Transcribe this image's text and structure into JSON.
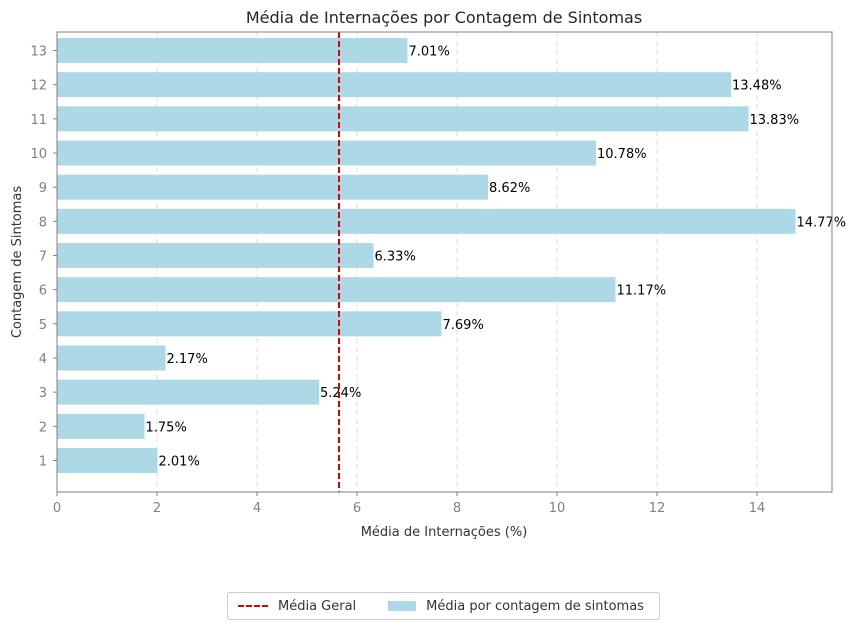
{
  "chart_data": {
    "type": "bar",
    "orientation": "horizontal",
    "title": "Média de Internações por Contagem de Sintomas",
    "xlabel": "Média de Internações (%)",
    "ylabel": "Contagem de Sintomas",
    "xlim": [
      0,
      15.5
    ],
    "xticks": [
      "0",
      "2",
      "4",
      "6",
      "8",
      "10",
      "12",
      "14"
    ],
    "grid": "vertical dashed",
    "legend_position": "bottom-center",
    "categories": [
      "1",
      "2",
      "3",
      "4",
      "5",
      "6",
      "7",
      "8",
      "9",
      "10",
      "11",
      "12",
      "13"
    ],
    "values": [
      2.01,
      1.75,
      5.24,
      2.17,
      7.69,
      11.17,
      6.33,
      14.77,
      8.62,
      10.78,
      13.83,
      13.48,
      7.01
    ],
    "data_labels": [
      "2.01%",
      "1.75%",
      "5.24%",
      "2.17%",
      "7.69%",
      "11.17%",
      "6.33%",
      "14.77%",
      "8.62%",
      "10.78%",
      "13.83%",
      "13.48%",
      "7.01%"
    ],
    "mean_line": {
      "value": 5.64,
      "label": "Média Geral",
      "color": "#e00000"
    },
    "series": [
      {
        "name": "Média por contagem de sintomas",
        "color": "#add8e6"
      }
    ]
  }
}
